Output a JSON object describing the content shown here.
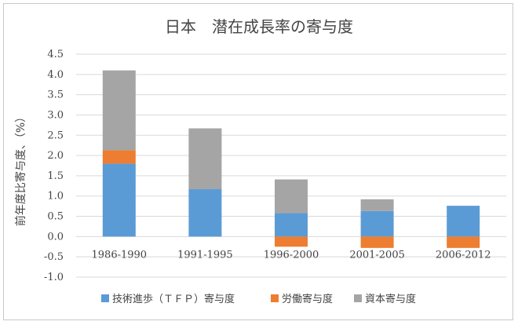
{
  "chart_data": {
    "type": "bar",
    "stacked": true,
    "title": "日本　潜在成長率の寄与度",
    "ylabel": "前年度比寄与度、（%）",
    "xlabel": "",
    "ylim": [
      -1.0,
      4.5
    ],
    "yticks": [
      "4.5",
      "4.0",
      "3.5",
      "3.0",
      "2.5",
      "2.0",
      "1.5",
      "1.0",
      "0.5",
      "0.0",
      "-0.5",
      "-1.0"
    ],
    "ytick_values": [
      4.5,
      4.0,
      3.5,
      3.0,
      2.5,
      2.0,
      1.5,
      1.0,
      0.5,
      0.0,
      -0.5,
      -1.0
    ],
    "grid": true,
    "legend_position": "bottom",
    "categories": [
      "1986-1990",
      "1991-1995",
      "1996-2000",
      "2001-2005",
      "2006-2012"
    ],
    "series": [
      {
        "name": "技術進歩（ＴＦＰ）寄与度",
        "color": "#5b9bd5",
        "values": [
          1.8,
          1.17,
          0.58,
          0.63,
          0.76
        ]
      },
      {
        "name": "労働寄与度",
        "color": "#ed7d31",
        "values": [
          0.33,
          0.0,
          -0.25,
          -0.28,
          -0.28
        ]
      },
      {
        "name": "資本寄与度",
        "color": "#a5a5a5",
        "values": [
          1.97,
          1.5,
          0.83,
          0.29,
          0.0
        ]
      }
    ]
  }
}
